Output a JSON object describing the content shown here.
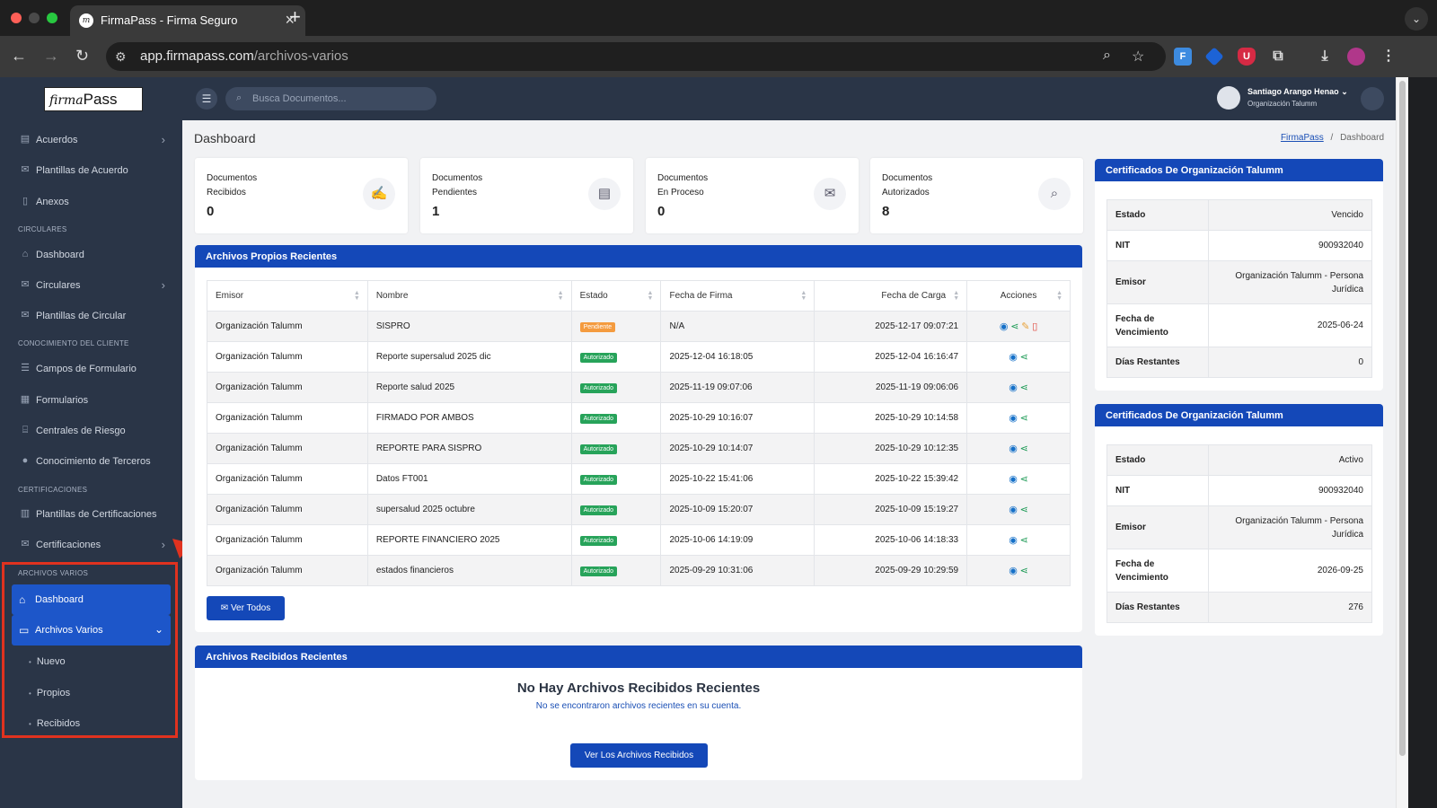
{
  "browser": {
    "tab_title": "FirmaPass - Firma Seguro",
    "tab_favicon": "m",
    "url_host": "app.firmapass.com",
    "url_path": "/archivos-varios"
  },
  "app": {
    "logo_part1": "firma",
    "logo_part2": "Pass",
    "search_placeholder": "Busca Documentos...",
    "user_name": "Santiago Arango Henao",
    "user_org": "Organización Talumm"
  },
  "sidebar": {
    "items_top": [
      {
        "label": "Acuerdos",
        "icon": "handshake-icon"
      },
      {
        "label": "Plantillas de Acuerdo",
        "icon": "mail-icon"
      },
      {
        "label": "Anexos",
        "icon": "file-icon"
      }
    ],
    "sec_circulares": "CIRCULARES",
    "items_circulares": [
      {
        "label": "Dashboard",
        "icon": "home-icon"
      },
      {
        "label": "Circulares",
        "icon": "mail-icon"
      },
      {
        "label": "Plantillas de Circular",
        "icon": "mail-icon"
      }
    ],
    "sec_conocimiento": "CONOCIMIENTO DEL CLIENTE",
    "items_conocimiento": [
      {
        "label": "Campos de Formulario",
        "icon": "list-icon"
      },
      {
        "label": "Formularios",
        "icon": "form-icon"
      },
      {
        "label": "Centrales de Riesgo",
        "icon": "bank-icon"
      },
      {
        "label": "Conocimiento de Terceros",
        "icon": "user-circle-icon"
      }
    ],
    "sec_certificaciones": "CERTIFICACIONES",
    "items_certificaciones": [
      {
        "label": "Plantillas de Certificaciones",
        "icon": "certificate-icon"
      },
      {
        "label": "Certificaciones",
        "icon": "mail-icon"
      }
    ],
    "sec_archivos": "ARCHIVOS VARIOS",
    "active_dashboard": "Dashboard",
    "active_archivos": "Archivos Varios",
    "subitems": [
      "Nuevo",
      "Propios",
      "Recibidos"
    ]
  },
  "page": {
    "title": "Dashboard",
    "breadcrumb_link": "FirmaPass",
    "breadcrumb_sep": "/",
    "breadcrumb_current": "Dashboard"
  },
  "stats": [
    {
      "line1": "Documentos",
      "line2": "Recibidos",
      "value": "0",
      "icon": "signature-icon"
    },
    {
      "line1": "Documentos",
      "line2": "Pendientes",
      "value": "1",
      "icon": "document-icon"
    },
    {
      "line1": "Documentos",
      "line2": "En Proceso",
      "value": "0",
      "icon": "envelope-icon"
    },
    {
      "line1": "Documentos",
      "line2": "Autorizados",
      "value": "8",
      "icon": "search-check-icon"
    }
  ],
  "propios": {
    "title": "Archivos Propios Recientes",
    "columns": [
      "Emisor",
      "Nombre",
      "Estado",
      "Fecha de Firma",
      "Fecha de Carga",
      "Acciones"
    ],
    "rows": [
      {
        "emisor": "Organización Talumm",
        "nombre": "SISPRO",
        "estado": "Pendiente",
        "firma": "N/A",
        "carga": "2025-12-17 09:07:21"
      },
      {
        "emisor": "Organización Talumm",
        "nombre": "Reporte supersalud 2025 dic",
        "estado": "Autorizado",
        "firma": "2025-12-04 16:18:05",
        "carga": "2025-12-04 16:16:47"
      },
      {
        "emisor": "Organización Talumm",
        "nombre": "Reporte salud 2025",
        "estado": "Autorizado",
        "firma": "2025-11-19 09:07:06",
        "carga": "2025-11-19 09:06:06"
      },
      {
        "emisor": "Organización Talumm",
        "nombre": "FIRMADO POR AMBOS",
        "estado": "Autorizado",
        "firma": "2025-10-29 10:16:07",
        "carga": "2025-10-29 10:14:58"
      },
      {
        "emisor": "Organización Talumm",
        "nombre": "REPORTE PARA SISPRO",
        "estado": "Autorizado",
        "firma": "2025-10-29 10:14:07",
        "carga": "2025-10-29 10:12:35"
      },
      {
        "emisor": "Organización Talumm",
        "nombre": "Datos FT001",
        "estado": "Autorizado",
        "firma": "2025-10-22 15:41:06",
        "carga": "2025-10-22 15:39:42"
      },
      {
        "emisor": "Organización Talumm",
        "nombre": "supersalud 2025 octubre",
        "estado": "Autorizado",
        "firma": "2025-10-09 15:20:07",
        "carga": "2025-10-09 15:19:27"
      },
      {
        "emisor": "Organización Talumm",
        "nombre": "REPORTE FINANCIERO 2025",
        "estado": "Autorizado",
        "firma": "2025-10-06 14:19:09",
        "carga": "2025-10-06 14:18:33"
      },
      {
        "emisor": "Organización Talumm",
        "nombre": "estados financieros",
        "estado": "Autorizado",
        "firma": "2025-09-29 10:31:06",
        "carga": "2025-09-29 10:29:59"
      }
    ],
    "ver_todos": "Ver Todos"
  },
  "recibidos": {
    "title": "Archivos Recibidos Recientes",
    "empty_title": "No Hay Archivos Recibidos Recientes",
    "empty_sub": "No se encontraron archivos recientes en su cuenta.",
    "button": "Ver Los Archivos Recibidos"
  },
  "certs": [
    {
      "title": "Certificados De Organización Talumm",
      "rows": [
        {
          "k": "Estado",
          "v": "Vencido"
        },
        {
          "k": "NIT",
          "v": "900932040"
        },
        {
          "k": "Emisor",
          "v": "Organización Talumm - Persona Jurídica"
        },
        {
          "k": "Fecha de Vencimiento",
          "v": "2025-06-24"
        },
        {
          "k": "Días Restantes",
          "v": "0"
        }
      ]
    },
    {
      "title": "Certificados De Organización Talumm",
      "rows": [
        {
          "k": "Estado",
          "v": "Activo"
        },
        {
          "k": "NIT",
          "v": "900932040"
        },
        {
          "k": "Emisor",
          "v": "Organización Talumm - Persona Jurídica"
        },
        {
          "k": "Fecha de Vencimiento",
          "v": "2026-09-25"
        },
        {
          "k": "Días Restantes",
          "v": "276"
        }
      ]
    }
  ],
  "colors": {
    "sidebar_bg": "#2a3547",
    "primary": "#1448b8",
    "pending": "#f49b3f",
    "authorized": "#27a35a",
    "highlight": "#e0321f"
  }
}
